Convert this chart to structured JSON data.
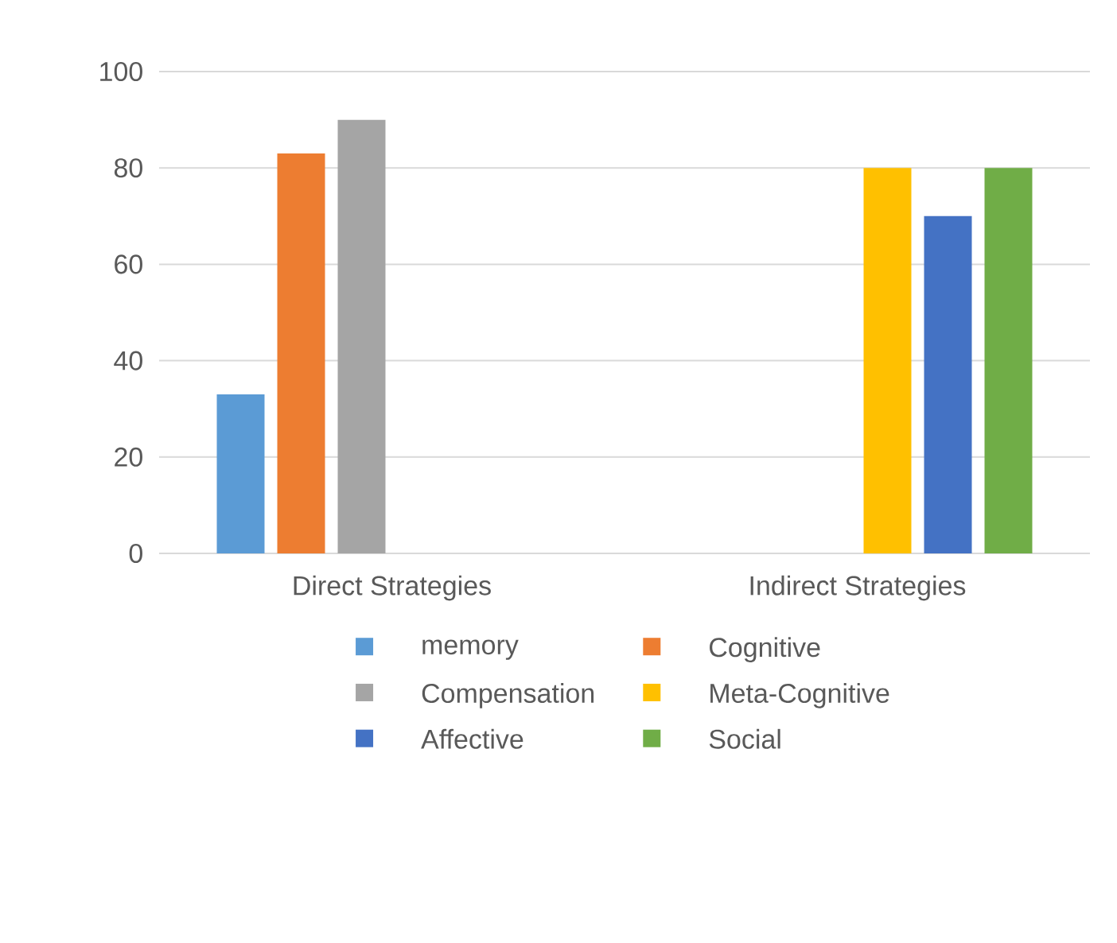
{
  "chart_data": {
    "type": "bar",
    "categories": [
      "Direct Strategies",
      "Indirect Strategies"
    ],
    "series": [
      {
        "name": "memory",
        "color": "#5b9bd5",
        "values": [
          33,
          null
        ]
      },
      {
        "name": "Cognitive",
        "color": "#ed7d31",
        "values": [
          83,
          null
        ]
      },
      {
        "name": "Compensation",
        "color": "#a5a5a5",
        "values": [
          90,
          null
        ]
      },
      {
        "name": "Meta-Cognitive",
        "color": "#ffc000",
        "values": [
          null,
          80
        ]
      },
      {
        "name": "Affective",
        "color": "#4472c4",
        "values": [
          null,
          70
        ]
      },
      {
        "name": "Social",
        "color": "#70ad47",
        "values": [
          null,
          80
        ]
      }
    ],
    "ylim": [
      0,
      100
    ],
    "yticks": [
      0,
      20,
      40,
      60,
      80,
      100
    ],
    "grid": "y",
    "legend": "bottom"
  }
}
